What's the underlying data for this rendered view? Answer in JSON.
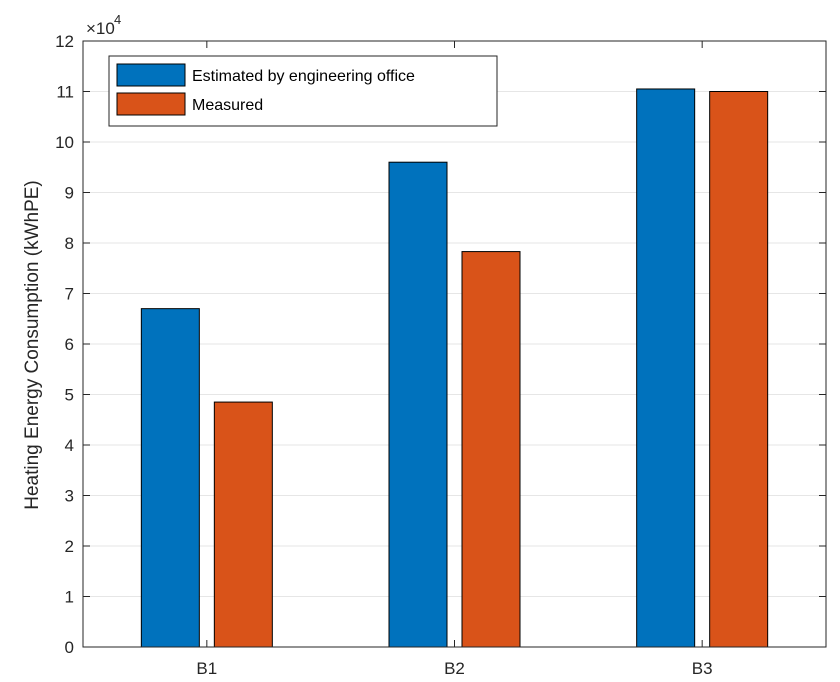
{
  "chart_data": {
    "type": "bar",
    "categories": [
      "B1",
      "B2",
      "B3"
    ],
    "series": [
      {
        "name": "Estimated by engineering office",
        "color": "#0072BD",
        "values": [
          67000,
          96000,
          110500
        ]
      },
      {
        "name": "Measured",
        "color": "#D95319",
        "values": [
          48500,
          78300,
          110000
        ]
      }
    ],
    "title": "",
    "xlabel": "",
    "ylabel": "Heating Energy Consumption (kWhPE)",
    "ylim": [
      0,
      120000
    ],
    "y_ticks": [
      0,
      1,
      2,
      3,
      4,
      5,
      6,
      7,
      8,
      9,
      10,
      11,
      12
    ],
    "y_tick_multiplier": {
      "base": "×10",
      "exponent": "4",
      "factor": 10000
    },
    "grid": {
      "y": true,
      "x": false
    },
    "legend": "top-left"
  }
}
